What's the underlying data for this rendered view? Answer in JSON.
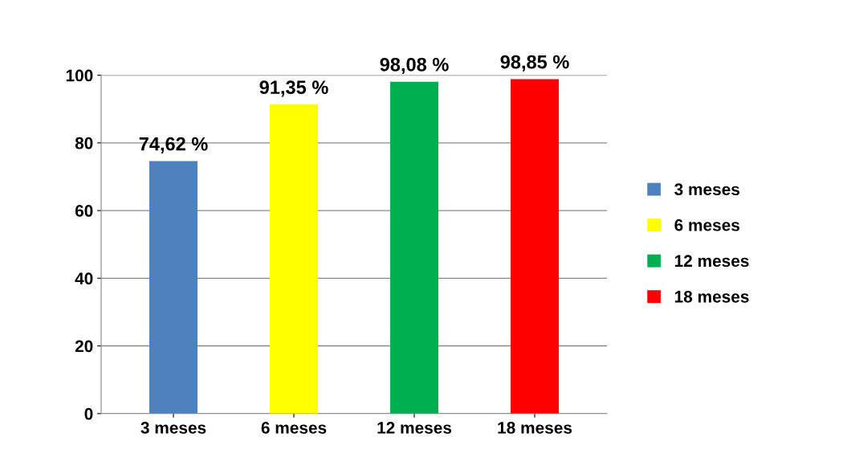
{
  "chart_data": {
    "type": "bar",
    "categories": [
      "3 meses",
      "6 meses",
      "12 meses",
      "18 meses"
    ],
    "series": [
      {
        "name": "3 meses",
        "color": "#4f81bd",
        "values": [
          74.62,
          null,
          null,
          null
        ],
        "value_labels": [
          "74,62 %",
          null,
          null,
          null
        ]
      },
      {
        "name": "6 meses",
        "color": "#ffff00",
        "values": [
          null,
          91.35,
          null,
          null
        ],
        "value_labels": [
          null,
          "91,35 %",
          null,
          null
        ]
      },
      {
        "name": "12 meses",
        "color": "#00b050",
        "values": [
          null,
          null,
          98.08,
          null
        ],
        "value_labels": [
          null,
          null,
          "98,08 %",
          null
        ]
      },
      {
        "name": "18 meses",
        "color": "#ff0000",
        "values": [
          null,
          null,
          null,
          98.85
        ],
        "value_labels": [
          null,
          null,
          null,
          "98,85 %"
        ]
      }
    ],
    "ylim": [
      0,
      100
    ],
    "yticks": [
      0,
      20,
      40,
      60,
      80,
      100
    ],
    "grid": "y",
    "legend": "right"
  }
}
